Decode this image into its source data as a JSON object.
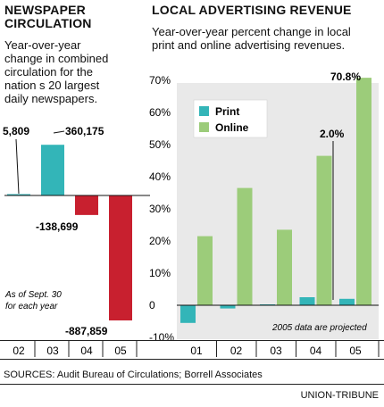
{
  "left_panel": {
    "title": "NEWSPAPER\nCIRCULATION",
    "subtitle": "Year-over-year\nchange in combined\ncirculation for the\nnation s 20 largest\ndaily newspapers.",
    "note": "As of Sept. 30\nfor each year"
  },
  "right_panel": {
    "title": "LOCAL ADVERTISING REVENUE",
    "subtitle": "Year-over-year percent change in local\nprint and online advertising revenues.",
    "note": "2005 data are projected"
  },
  "colors": {
    "print": "#33b5b8",
    "online": "#9ccc7a",
    "negative": "#c8202f",
    "panel_bg": "#e9e9e9"
  },
  "chart_data": [
    {
      "type": "bar",
      "title": "NEWSPAPER CIRCULATION",
      "categories": [
        "02",
        "03",
        "04",
        "05"
      ],
      "values": [
        5809,
        360175,
        -138699,
        -887859
      ],
      "labels": [
        "5,809",
        "360,175",
        "-138,699",
        "-887,859"
      ],
      "xlabel": "",
      "ylabel": ""
    },
    {
      "type": "bar",
      "title": "LOCAL ADVERTISING REVENUE",
      "categories": [
        "01",
        "02",
        "03",
        "04",
        "05"
      ],
      "series": [
        {
          "name": "Print",
          "values": [
            -5.5,
            -1.0,
            0.2,
            2.5,
            2.0
          ]
        },
        {
          "name": "Online",
          "values": [
            21.5,
            36.5,
            23.5,
            46.5,
            70.8
          ]
        }
      ],
      "yticks": [
        "70%",
        "60%",
        "50%",
        "40%",
        "30%",
        "20%",
        "10%",
        "0",
        "-10%"
      ],
      "ylim": [
        -10,
        72
      ],
      "annotations": [
        "70.8%",
        "2.0%"
      ],
      "legend": "top-left",
      "grid": false
    }
  ],
  "footer": {
    "sources": "SOURCES: Audit Bureau of Circulations; Borrell Associates",
    "credit": "UNION-TRIBUNE"
  }
}
